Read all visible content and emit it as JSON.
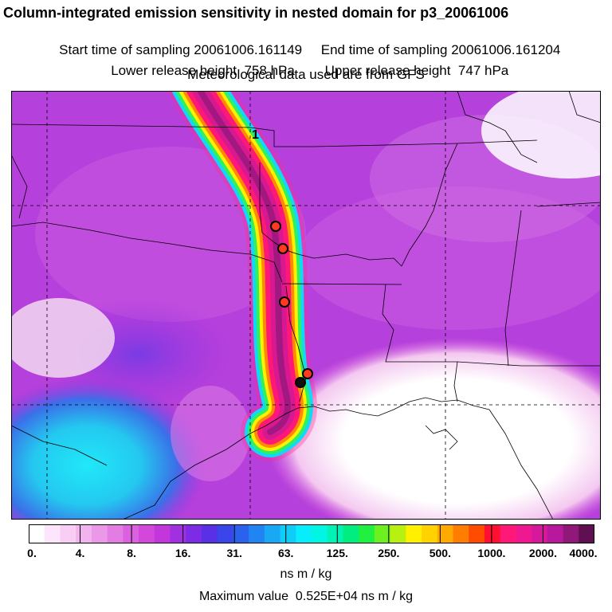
{
  "header": {
    "title": "Column-integrated emission sensitivity in nested domain for p3_20061006",
    "start_label": "Start time of sampling",
    "start_value": "20061006.161149",
    "end_label": "End time of sampling",
    "end_value": "20061006.161204",
    "lower_label": "Lower release height",
    "lower_value": "758 hPa",
    "upper_label": "Upper release height",
    "upper_value": "747 hPa",
    "met_line": "Meteorological data used are from GFS"
  },
  "map": {
    "plume_label": "1",
    "release_points": 5,
    "black_points": 1
  },
  "colorbar": {
    "colors": [
      "#ffffff",
      "#fde6fb",
      "#f9cef5",
      "#f2b4ef",
      "#eb98e8",
      "#e37de3",
      "#db62df",
      "#d348db",
      "#c236dc",
      "#a030e0",
      "#7d2be4",
      "#5a30e6",
      "#3a45ea",
      "#2a62ee",
      "#2085f2",
      "#18a8f5",
      "#10ccf8",
      "#08ecfb",
      "#00f6e2",
      "#00f2b5",
      "#00ee80",
      "#20f040",
      "#6ef020",
      "#b8f010",
      "#fff000",
      "#ffd200",
      "#ffaa00",
      "#ff7d00",
      "#ff4c00",
      "#ff1030",
      "#ff1878",
      "#f01890",
      "#d8189c",
      "#b8189c",
      "#901878",
      "#601050"
    ],
    "ticks": [
      "0.",
      "4.",
      "8.",
      "16.",
      "31.",
      "63.",
      "125.",
      "250.",
      "500.",
      "1000.",
      "2000.",
      "4000."
    ],
    "units": "ns m / kg"
  },
  "footer": {
    "max_label": "Maximum value",
    "max_value": "0.525E+04 ns m / kg"
  }
}
